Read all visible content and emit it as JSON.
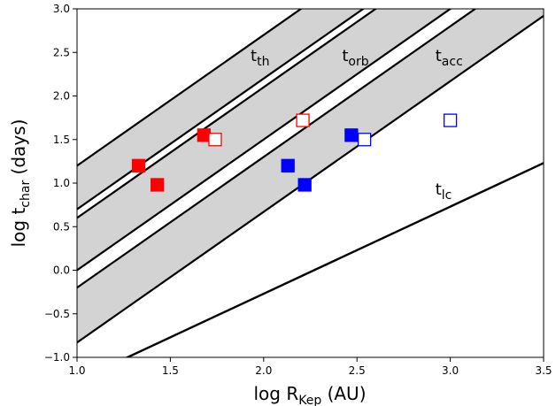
{
  "chart_data": {
    "type": "scatter",
    "title": "",
    "xlabel": {
      "main": "log R",
      "sub": "Kep",
      "unit": " (AU)"
    },
    "ylabel": {
      "main": "log t",
      "sub": "char",
      "unit": " (days)"
    },
    "xlim": [
      1.0,
      3.5
    ],
    "ylim": [
      -1.0,
      3.0
    ],
    "xticks": [
      "1.0",
      "1.5",
      "2.0",
      "2.5",
      "3.0",
      "3.5"
    ],
    "yticks": [
      "−1.0",
      "−0.5",
      "0.0",
      "0.5",
      "1.0",
      "1.5",
      "2.0",
      "2.5",
      "3.0"
    ],
    "grid": false,
    "bands": [
      {
        "name": "t_th",
        "label_main": "t",
        "label_sub": "th",
        "lower_intercept": -0.8,
        "upper_intercept": -0.3,
        "slope": 1.5,
        "label_at": [
          1.93,
          2.4
        ]
      },
      {
        "name": "t_orb",
        "label_main": "t",
        "label_sub": "orb",
        "lower_intercept": -0.9,
        "upper_intercept": -1.5,
        "slope": 1.5,
        "label_at": [
          2.42,
          2.4
        ]
      },
      {
        "name": "t_acc",
        "label_main": "t",
        "label_sub": "acc",
        "lower_intercept": -2.33,
        "upper_intercept": -1.7,
        "slope": 1.5,
        "label_at": [
          2.92,
          2.4
        ]
      }
    ],
    "lines": [
      {
        "name": "t_lc",
        "label_main": "t",
        "label_sub": "lc",
        "slope": 1.0,
        "intercept": -2.27,
        "label_at": [
          2.92,
          0.87
        ]
      }
    ],
    "series": [
      {
        "color": "#ff0000",
        "filled": true,
        "points": [
          [
            1.33,
            1.2
          ],
          [
            1.43,
            0.98
          ],
          [
            1.68,
            1.55
          ]
        ]
      },
      {
        "color": "#ff0000",
        "filled": false,
        "points": [
          [
            1.74,
            1.5
          ],
          [
            2.21,
            1.72
          ]
        ]
      },
      {
        "color": "#0000ff",
        "filled": true,
        "points": [
          [
            2.13,
            1.2
          ],
          [
            2.22,
            0.98
          ],
          [
            2.47,
            1.55
          ]
        ]
      },
      {
        "color": "#0000ff",
        "filled": false,
        "points": [
          [
            2.54,
            1.5
          ],
          [
            3.0,
            1.72
          ]
        ]
      }
    ],
    "band_color": "#d3d3d3"
  }
}
